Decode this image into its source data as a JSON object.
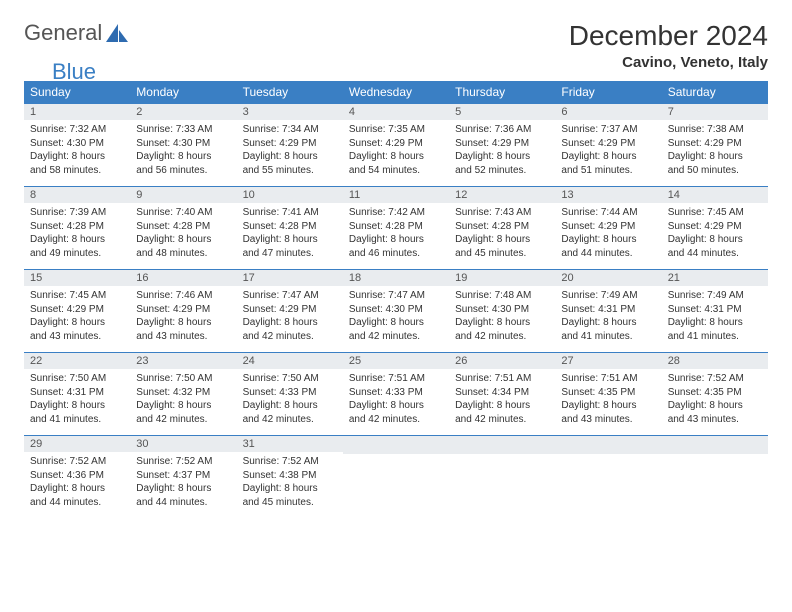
{
  "logo": {
    "text1": "General",
    "text2": "Blue"
  },
  "title": "December 2024",
  "location": "Cavino, Veneto, Italy",
  "colors": {
    "header_bg": "#3a7fc4",
    "header_text": "#ffffff",
    "daynum_bg": "#e9ecef",
    "border": "#3a7fc4"
  },
  "weekdays": [
    "Sunday",
    "Monday",
    "Tuesday",
    "Wednesday",
    "Thursday",
    "Friday",
    "Saturday"
  ],
  "weeks": [
    [
      {
        "n": "1",
        "sr": "7:32 AM",
        "ss": "4:30 PM",
        "dl": "8 hours and 58 minutes."
      },
      {
        "n": "2",
        "sr": "7:33 AM",
        "ss": "4:30 PM",
        "dl": "8 hours and 56 minutes."
      },
      {
        "n": "3",
        "sr": "7:34 AM",
        "ss": "4:29 PM",
        "dl": "8 hours and 55 minutes."
      },
      {
        "n": "4",
        "sr": "7:35 AM",
        "ss": "4:29 PM",
        "dl": "8 hours and 54 minutes."
      },
      {
        "n": "5",
        "sr": "7:36 AM",
        "ss": "4:29 PM",
        "dl": "8 hours and 52 minutes."
      },
      {
        "n": "6",
        "sr": "7:37 AM",
        "ss": "4:29 PM",
        "dl": "8 hours and 51 minutes."
      },
      {
        "n": "7",
        "sr": "7:38 AM",
        "ss": "4:29 PM",
        "dl": "8 hours and 50 minutes."
      }
    ],
    [
      {
        "n": "8",
        "sr": "7:39 AM",
        "ss": "4:28 PM",
        "dl": "8 hours and 49 minutes."
      },
      {
        "n": "9",
        "sr": "7:40 AM",
        "ss": "4:28 PM",
        "dl": "8 hours and 48 minutes."
      },
      {
        "n": "10",
        "sr": "7:41 AM",
        "ss": "4:28 PM",
        "dl": "8 hours and 47 minutes."
      },
      {
        "n": "11",
        "sr": "7:42 AM",
        "ss": "4:28 PM",
        "dl": "8 hours and 46 minutes."
      },
      {
        "n": "12",
        "sr": "7:43 AM",
        "ss": "4:28 PM",
        "dl": "8 hours and 45 minutes."
      },
      {
        "n": "13",
        "sr": "7:44 AM",
        "ss": "4:29 PM",
        "dl": "8 hours and 44 minutes."
      },
      {
        "n": "14",
        "sr": "7:45 AM",
        "ss": "4:29 PM",
        "dl": "8 hours and 44 minutes."
      }
    ],
    [
      {
        "n": "15",
        "sr": "7:45 AM",
        "ss": "4:29 PM",
        "dl": "8 hours and 43 minutes."
      },
      {
        "n": "16",
        "sr": "7:46 AM",
        "ss": "4:29 PM",
        "dl": "8 hours and 43 minutes."
      },
      {
        "n": "17",
        "sr": "7:47 AM",
        "ss": "4:29 PM",
        "dl": "8 hours and 42 minutes."
      },
      {
        "n": "18",
        "sr": "7:47 AM",
        "ss": "4:30 PM",
        "dl": "8 hours and 42 minutes."
      },
      {
        "n": "19",
        "sr": "7:48 AM",
        "ss": "4:30 PM",
        "dl": "8 hours and 42 minutes."
      },
      {
        "n": "20",
        "sr": "7:49 AM",
        "ss": "4:31 PM",
        "dl": "8 hours and 41 minutes."
      },
      {
        "n": "21",
        "sr": "7:49 AM",
        "ss": "4:31 PM",
        "dl": "8 hours and 41 minutes."
      }
    ],
    [
      {
        "n": "22",
        "sr": "7:50 AM",
        "ss": "4:31 PM",
        "dl": "8 hours and 41 minutes."
      },
      {
        "n": "23",
        "sr": "7:50 AM",
        "ss": "4:32 PM",
        "dl": "8 hours and 42 minutes."
      },
      {
        "n": "24",
        "sr": "7:50 AM",
        "ss": "4:33 PM",
        "dl": "8 hours and 42 minutes."
      },
      {
        "n": "25",
        "sr": "7:51 AM",
        "ss": "4:33 PM",
        "dl": "8 hours and 42 minutes."
      },
      {
        "n": "26",
        "sr": "7:51 AM",
        "ss": "4:34 PM",
        "dl": "8 hours and 42 minutes."
      },
      {
        "n": "27",
        "sr": "7:51 AM",
        "ss": "4:35 PM",
        "dl": "8 hours and 43 minutes."
      },
      {
        "n": "28",
        "sr": "7:52 AM",
        "ss": "4:35 PM",
        "dl": "8 hours and 43 minutes."
      }
    ],
    [
      {
        "n": "29",
        "sr": "7:52 AM",
        "ss": "4:36 PM",
        "dl": "8 hours and 44 minutes."
      },
      {
        "n": "30",
        "sr": "7:52 AM",
        "ss": "4:37 PM",
        "dl": "8 hours and 44 minutes."
      },
      {
        "n": "31",
        "sr": "7:52 AM",
        "ss": "4:38 PM",
        "dl": "8 hours and 45 minutes."
      },
      null,
      null,
      null,
      null
    ]
  ],
  "labels": {
    "sunrise": "Sunrise:",
    "sunset": "Sunset:",
    "daylight": "Daylight:"
  }
}
